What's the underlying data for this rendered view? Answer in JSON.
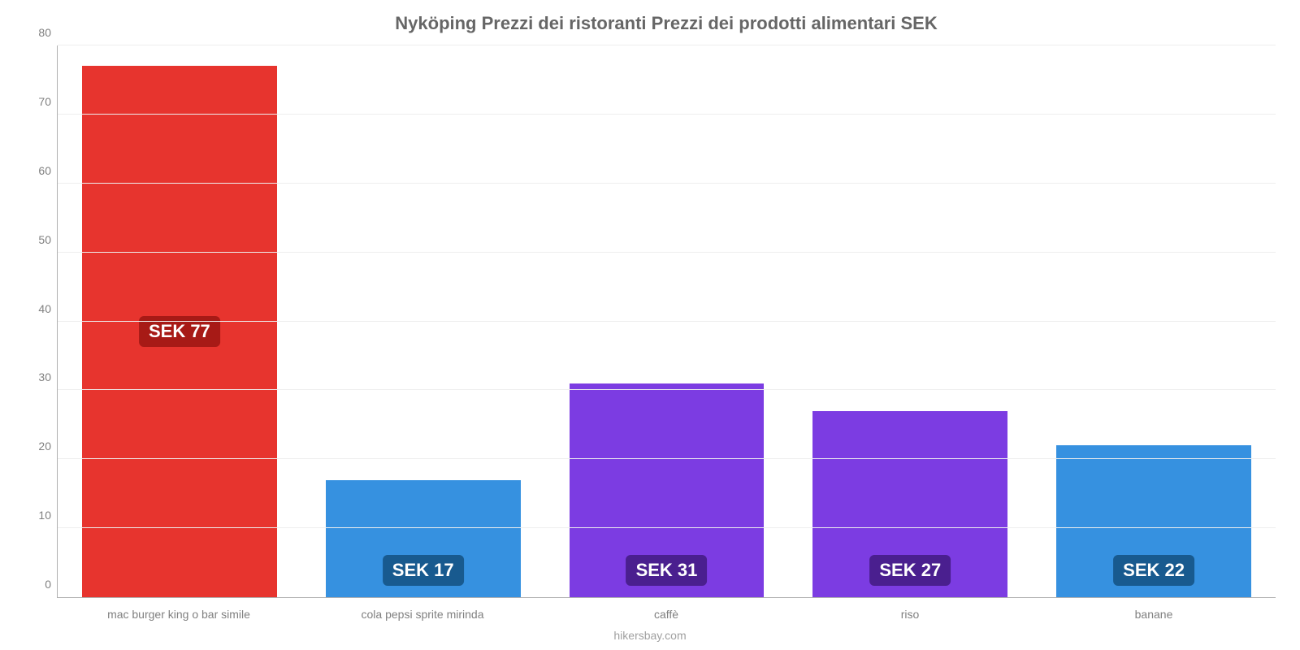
{
  "chart": {
    "type": "bar",
    "title": "Nyköping Prezzi dei ristoranti Prezzi dei prodotti alimentari SEK",
    "title_fontsize": 22,
    "title_color": "#666666",
    "footer": "hikersbay.com",
    "footer_color": "#a0a0a0",
    "background_color": "#ffffff",
    "grid_color": "#eeeeee",
    "axis_color": "#b0b0b0",
    "ylim": [
      0,
      80
    ],
    "ytick_step": 10,
    "yticks": [
      0,
      10,
      20,
      30,
      40,
      50,
      60,
      70,
      80
    ],
    "label_fontsize": 14,
    "label_color": "#808080",
    "bar_width_pct": 80,
    "value_label_fontsize": 22,
    "categories": [
      "mac burger king o bar simile",
      "cola pepsi sprite mirinda",
      "caffè",
      "riso",
      "banane"
    ],
    "values": [
      77,
      17,
      31,
      27,
      22
    ],
    "value_labels": [
      "SEK 77",
      "SEK 17",
      "SEK 31",
      "SEK 27",
      "SEK 22"
    ],
    "bar_colors": [
      "#e7342e",
      "#3691e0",
      "#7c3ce2",
      "#7c3ce2",
      "#3691e0"
    ],
    "badge_colors": [
      "#a71a16",
      "#185a8f",
      "#4a1f8f",
      "#4a1f8f",
      "#185a8f"
    ]
  }
}
